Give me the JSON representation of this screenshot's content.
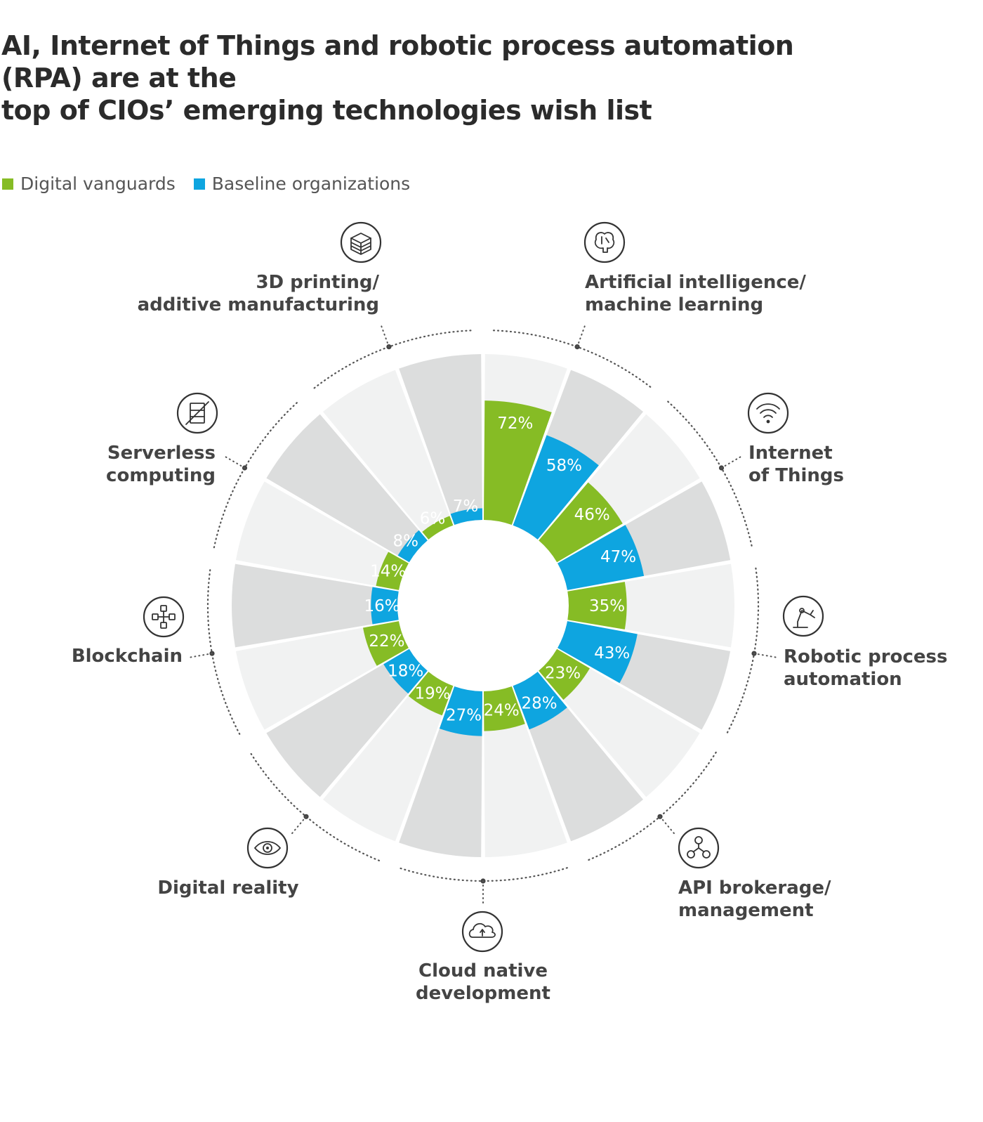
{
  "title_line1": "AI, Internet of Things and robotic process automation (RPA) are at the",
  "title_line2": "top of CIOs’ emerging technologies wish list",
  "legend": [
    {
      "label": "Digital vanguards",
      "color": "#86bc25"
    },
    {
      "label": "Baseline organizations",
      "color": "#0ea5e0"
    }
  ],
  "chart_data": {
    "type": "radial-bar",
    "unit": "%",
    "series": [
      {
        "name": "Digital vanguards",
        "color": "#86bc25"
      },
      {
        "name": "Baseline organizations",
        "color": "#0ea5e0"
      }
    ],
    "categories": [
      {
        "label": [
          "Artificial intelligence/",
          "machine learning"
        ],
        "icon": "brain-icon",
        "values": [
          72,
          58
        ]
      },
      {
        "label": [
          "Internet",
          "of Things"
        ],
        "icon": "wifi-icon",
        "values": [
          46,
          47
        ]
      },
      {
        "label": [
          "Robotic process",
          "automation"
        ],
        "icon": "robot-arm-icon",
        "values": [
          35,
          43
        ]
      },
      {
        "label": [
          "API brokerage/",
          "management"
        ],
        "icon": "api-icon",
        "values": [
          23,
          28
        ]
      },
      {
        "label": [
          "Cloud native",
          "development"
        ],
        "icon": "cloud-icon",
        "values": [
          24,
          27
        ]
      },
      {
        "label": [
          "Digital reality"
        ],
        "icon": "eye-icon",
        "values": [
          19,
          18
        ]
      },
      {
        "label": [
          "Blockchain"
        ],
        "icon": "blockchain-icon",
        "values": [
          22,
          16
        ]
      },
      {
        "label": [
          "Serverless",
          "computing"
        ],
        "icon": "server-crossed-icon",
        "values": [
          14,
          8
        ]
      },
      {
        "label": [
          "3D printing/",
          "additive manufacturing"
        ],
        "icon": "cube-stack-icon",
        "values": [
          6,
          7
        ]
      }
    ],
    "background_colors": [
      "#f1f2f2",
      "#dcdddd"
    ],
    "max_value": 100
  }
}
